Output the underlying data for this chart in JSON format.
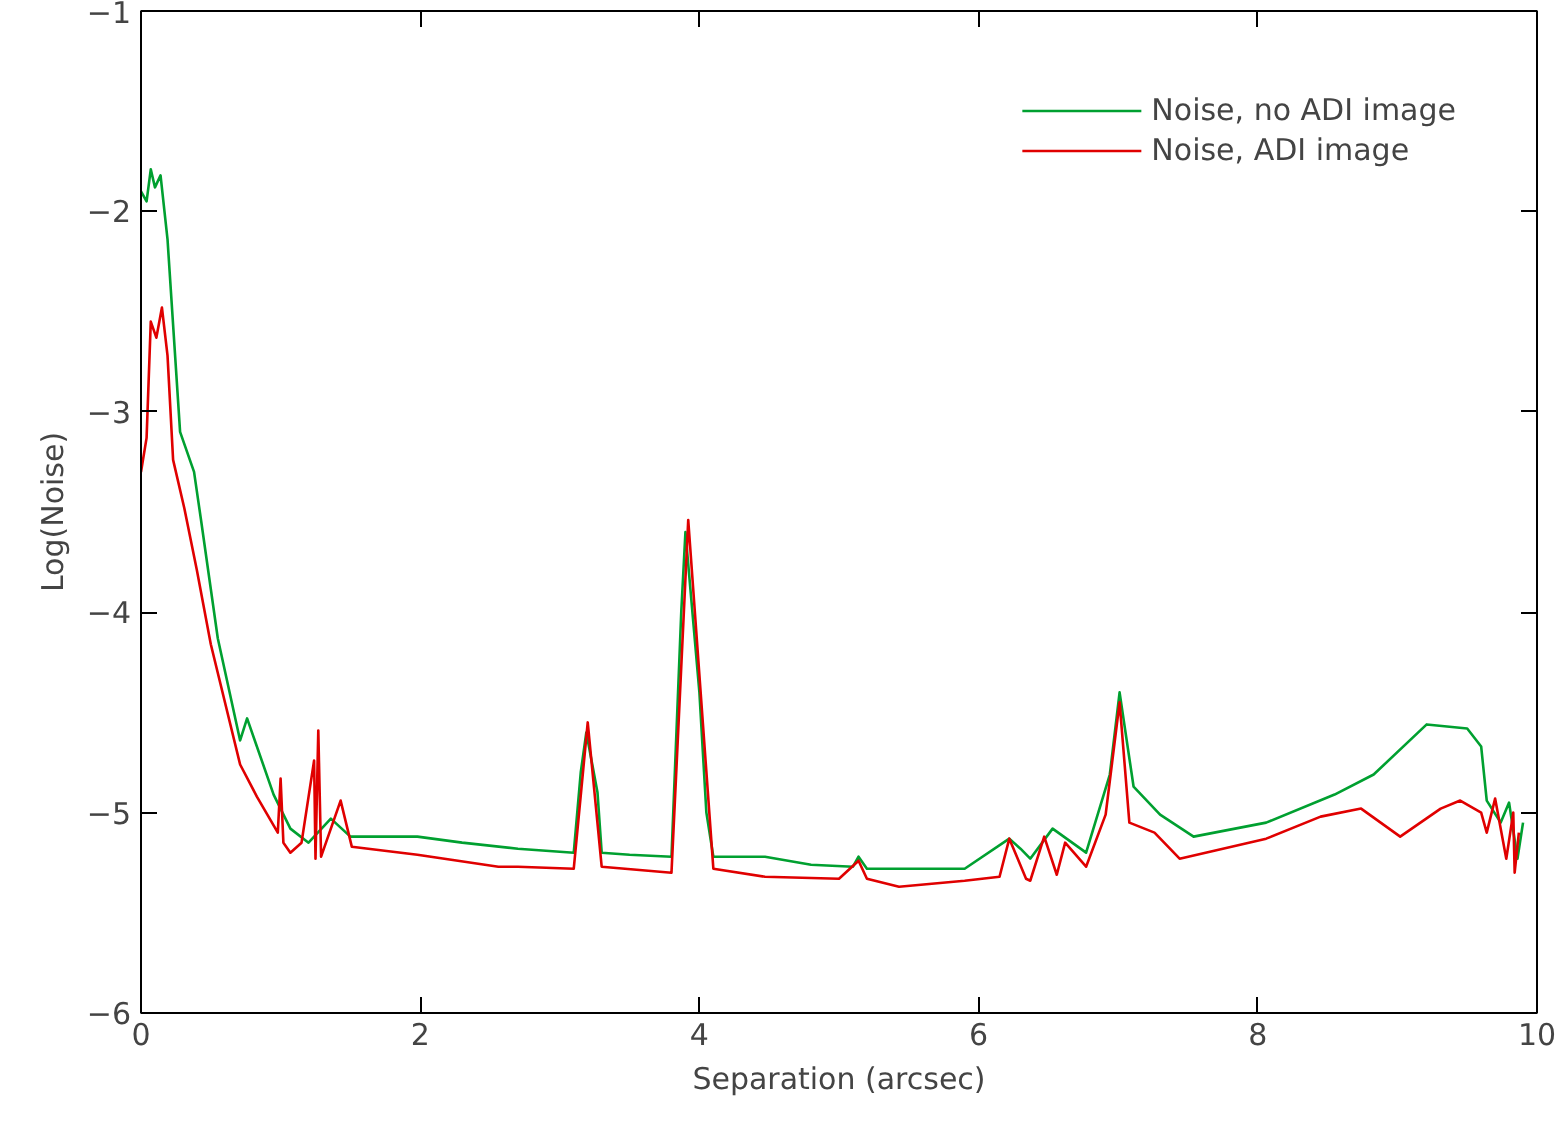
{
  "chart_data": {
    "type": "line",
    "xlabel": "Separation (arcsec)",
    "ylabel": "Log(Noise)",
    "xlim": [
      0,
      10
    ],
    "ylim": [
      -6,
      -1
    ],
    "xticks": [
      0,
      2,
      4,
      6,
      8,
      10
    ],
    "yticks": [
      -6,
      -5,
      -4,
      -3,
      -2,
      -1
    ],
    "grid": false,
    "legend": "top right",
    "series": [
      {
        "name": "Noise, no ADI image",
        "color": "#00a030",
        "x": [
          0.0,
          0.04,
          0.07,
          0.1,
          0.14,
          0.19,
          0.28,
          0.38,
          0.43,
          0.55,
          0.71,
          0.76,
          0.95,
          1.07,
          1.2,
          1.36,
          1.5,
          1.98,
          2.3,
          2.7,
          3.1,
          3.15,
          3.19,
          3.27,
          3.3,
          3.5,
          3.8,
          3.87,
          3.9,
          4.0,
          4.05,
          4.1,
          4.47,
          4.8,
          5.1,
          5.14,
          5.2,
          5.5,
          5.9,
          6.22,
          6.3,
          6.37,
          6.53,
          6.77,
          6.94,
          7.01,
          7.11,
          7.3,
          7.54,
          8.06,
          8.55,
          8.83,
          9.21,
          9.5,
          9.6,
          9.64,
          9.74,
          9.8,
          9.86,
          9.9
        ],
        "values": [
          -1.9,
          -1.95,
          -1.79,
          -1.88,
          -1.82,
          -2.14,
          -3.1,
          -3.3,
          -3.54,
          -4.13,
          -4.64,
          -4.53,
          -4.91,
          -5.08,
          -5.15,
          -5.03,
          -5.12,
          -5.12,
          -5.15,
          -5.18,
          -5.2,
          -4.8,
          -4.6,
          -4.9,
          -5.2,
          -5.21,
          -5.22,
          -4.0,
          -3.6,
          -4.4,
          -5.0,
          -5.22,
          -5.22,
          -5.26,
          -5.27,
          -5.22,
          -5.28,
          -5.28,
          -5.28,
          -5.13,
          -5.18,
          -5.23,
          -5.08,
          -5.2,
          -4.81,
          -4.4,
          -4.87,
          -5.01,
          -5.12,
          -5.05,
          -4.91,
          -4.81,
          -4.56,
          -4.58,
          -4.67,
          -4.94,
          -5.05,
          -4.95,
          -5.23,
          -5.05
        ]
      },
      {
        "name": "Noise, ADI image",
        "color": "#e00000",
        "x": [
          0.0,
          0.04,
          0.07,
          0.11,
          0.15,
          0.19,
          0.23,
          0.31,
          0.4,
          0.5,
          0.71,
          0.83,
          0.98,
          1.0,
          1.02,
          1.07,
          1.15,
          1.24,
          1.25,
          1.27,
          1.29,
          1.43,
          1.51,
          1.98,
          2.56,
          2.7,
          3.1,
          3.2,
          3.3,
          3.8,
          3.92,
          4.1,
          4.47,
          5.0,
          5.14,
          5.2,
          5.43,
          5.9,
          6.15,
          6.22,
          6.34,
          6.37,
          6.47,
          6.56,
          6.62,
          6.77,
          6.91,
          7.01,
          7.08,
          7.26,
          7.44,
          8.06,
          8.45,
          8.74,
          9.02,
          9.31,
          9.45,
          9.6,
          9.64,
          9.7,
          9.78,
          9.83,
          9.84,
          9.87
        ],
        "values": [
          -3.3,
          -3.13,
          -2.55,
          -2.63,
          -2.48,
          -2.72,
          -3.24,
          -3.48,
          -3.79,
          -4.16,
          -4.76,
          -4.92,
          -5.1,
          -4.83,
          -5.15,
          -5.2,
          -5.15,
          -4.74,
          -5.23,
          -4.59,
          -5.22,
          -4.94,
          -5.17,
          -5.21,
          -5.27,
          -5.27,
          -5.28,
          -4.55,
          -5.27,
          -5.3,
          -3.54,
          -5.28,
          -5.32,
          -5.33,
          -5.24,
          -5.33,
          -5.37,
          -5.34,
          -5.32,
          -5.13,
          -5.33,
          -5.34,
          -5.12,
          -5.31,
          -5.15,
          -5.27,
          -5.01,
          -4.45,
          -5.05,
          -5.1,
          -5.23,
          -5.13,
          -5.02,
          -4.98,
          -5.12,
          -4.98,
          -4.94,
          -5.0,
          -5.1,
          -4.93,
          -5.23,
          -5.0,
          -5.3,
          -5.1
        ]
      }
    ]
  }
}
